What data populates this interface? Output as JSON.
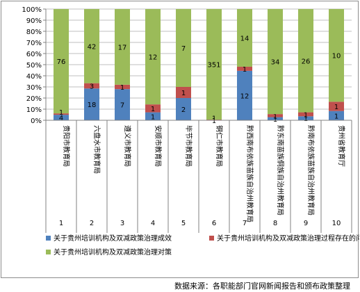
{
  "chart_data": {
    "type": "bar",
    "stacked": true,
    "normalized": true,
    "ylim": [
      0,
      100
    ],
    "ytick_labels": [
      "0%",
      "10%",
      "20%",
      "30%",
      "40%",
      "50%",
      "60%",
      "70%",
      "80%",
      "90%",
      "100%"
    ],
    "grid": true,
    "legend_position": "bottom",
    "categories": [
      "贵阳市教育局",
      "六盘水市教育局",
      "遵义市教育局",
      "安顺市教育局",
      "毕节市教育局",
      "铜仁市教育局",
      "黔西南布依族苗族自治州教育局",
      "黔东南苗族侗族自治州教育局",
      "黔南布依族苗族自治州教育局",
      "贵州省教育厅"
    ],
    "category_numbers": [
      "1",
      "2",
      "3",
      "4",
      "5",
      "6",
      "7",
      "8",
      "9",
      "10"
    ],
    "series": [
      {
        "name": "关于贵州培训机构及双减政策治理成效",
        "values": [
          4,
          18,
          7,
          1,
          2,
          1,
          12,
          1,
          1,
          1
        ]
      },
      {
        "name": "关于贵州培训机构及双减政策治理过程存在的问题",
        "values": [
          1,
          3,
          1,
          1,
          1,
          1,
          1,
          1,
          1,
          1
        ]
      },
      {
        "name": "关于贵州培训机构及双减政策治理对策",
        "values": [
          76,
          42,
          17,
          12,
          7,
          351,
          14,
          34,
          26,
          10
        ]
      }
    ],
    "value_labels": [
      [
        "",
        "18",
        "7",
        "1",
        "2",
        "",
        "12",
        "1",
        "1",
        "1"
      ],
      [
        "",
        "3",
        "1",
        "1",
        "1",
        "",
        "1",
        "1",
        "1",
        "1"
      ],
      [
        "76",
        "42",
        "17",
        "12",
        "7",
        "351",
        "14",
        "34",
        "26",
        "10"
      ]
    ],
    "series_colors": [
      "#4f81bd",
      "#c0504d",
      "#9bbb59"
    ]
  },
  "source_note": "数据来源：各职能部门官网新闻报告和颁布政策整理"
}
